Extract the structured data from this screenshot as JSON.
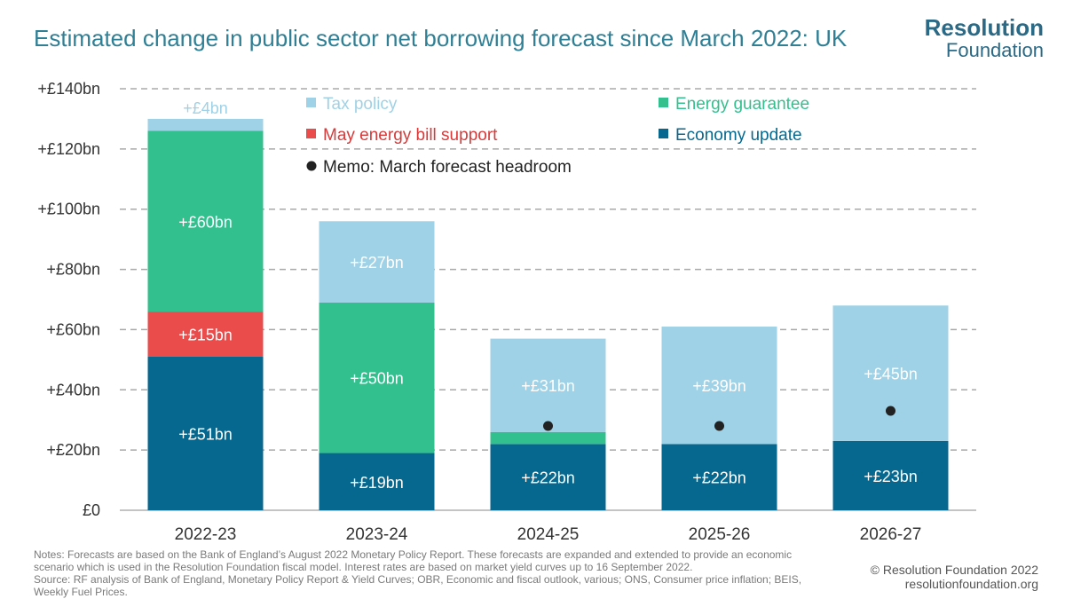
{
  "title": "Estimated change in public sector net borrowing forecast since March 2022: UK",
  "logo": {
    "main": "Resolution",
    "sub": "Foundation"
  },
  "notes": [
    "Notes: Forecasts are based on the Bank of England’s August 2022 Monetary Policy Report. These forecasts are expanded and extended to provide an economic scenario which is used in the Resolution Foundation fiscal model. Interest rates are based on market yield curves up to 16 September 2022.",
    "Source: RF analysis of Bank of England, Monetary Policy Report & Yield Curves; OBR, Economic and fiscal outlook, various; ONS, Consumer price inflation; BEIS, Weekly Fuel Prices."
  ],
  "copyright": [
    "© Resolution Foundation 2022",
    "resolutionfoundation.org"
  ],
  "colors": {
    "economy": "#07688f",
    "may_support": "#ea4c4c",
    "energy": "#33c08f",
    "tax": "#9fd2e6",
    "memo": "#222222",
    "grid": "#aaaaaa",
    "axis_text": "#333333"
  },
  "chart_data": {
    "type": "bar",
    "stacked": true,
    "categories": [
      "2022-23",
      "2023-24",
      "2024-25",
      "2025-26",
      "2026-27"
    ],
    "series": [
      {
        "key": "economy",
        "name": "Economy update",
        "values": [
          51,
          19,
          22,
          22,
          23
        ],
        "labels": [
          "+£51bn",
          "+£19bn",
          "+£22bn",
          "+£22bn",
          "+£23bn"
        ]
      },
      {
        "key": "may_support",
        "name": "May energy bill support",
        "values": [
          15,
          0,
          0,
          0,
          0
        ],
        "labels": [
          "+£15bn",
          "",
          "",
          "",
          ""
        ]
      },
      {
        "key": "energy",
        "name": "Energy guarantee",
        "values": [
          60,
          50,
          4,
          0,
          0
        ],
        "labels": [
          "+£60bn",
          "+£50bn",
          "",
          "",
          ""
        ]
      },
      {
        "key": "tax",
        "name": "Tax policy",
        "values": [
          4,
          27,
          31,
          39,
          45
        ],
        "labels": [
          "+£4bn",
          "+£27bn",
          "+£31bn",
          "+£39bn",
          "+£45bn"
        ]
      }
    ],
    "memo": {
      "name": "Memo: March forecast headroom",
      "values": [
        null,
        null,
        28,
        28,
        33
      ]
    },
    "yticks": [
      0,
      20,
      40,
      60,
      80,
      100,
      120,
      140
    ],
    "ytick_labels": [
      "£0",
      "+£20bn",
      "+£40bn",
      "+£60bn",
      "+£80bn",
      "+£100bn",
      "+£120bn",
      "+£140bn"
    ],
    "ylim": [
      0,
      140
    ],
    "grid": true,
    "legend_position": "top",
    "legend_order": [
      "tax",
      "energy",
      "may_support",
      "economy",
      "memo"
    ]
  }
}
